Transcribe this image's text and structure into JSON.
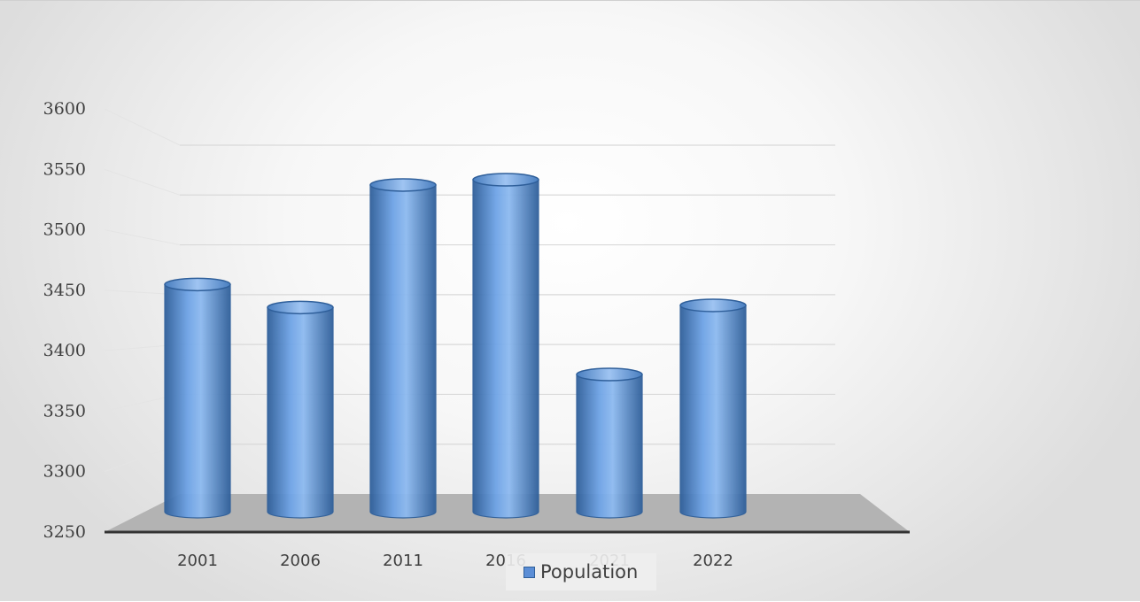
{
  "chart_data": {
    "type": "bar",
    "style": "3d-cylinder",
    "categories": [
      "2001",
      "2006",
      "2011",
      "2016",
      "2021",
      "2022"
    ],
    "series": [
      {
        "name": "Population",
        "values": [
          3467,
          3445,
          3562,
          3567,
          3381,
          3447
        ]
      }
    ],
    "yticks": [
      "3250",
      "3300",
      "3350",
      "3400",
      "3450",
      "3500",
      "3550",
      "3600"
    ],
    "ylim": [
      3250,
      3600
    ],
    "grid": true,
    "legend": "bottom-center",
    "colors": {
      "bar": "#5b8ed6",
      "bar_edge": "#2f5f9a",
      "floor": "#b3b3b3",
      "grid": "#d9d9d9"
    }
  },
  "legend": {
    "label": "Population"
  }
}
